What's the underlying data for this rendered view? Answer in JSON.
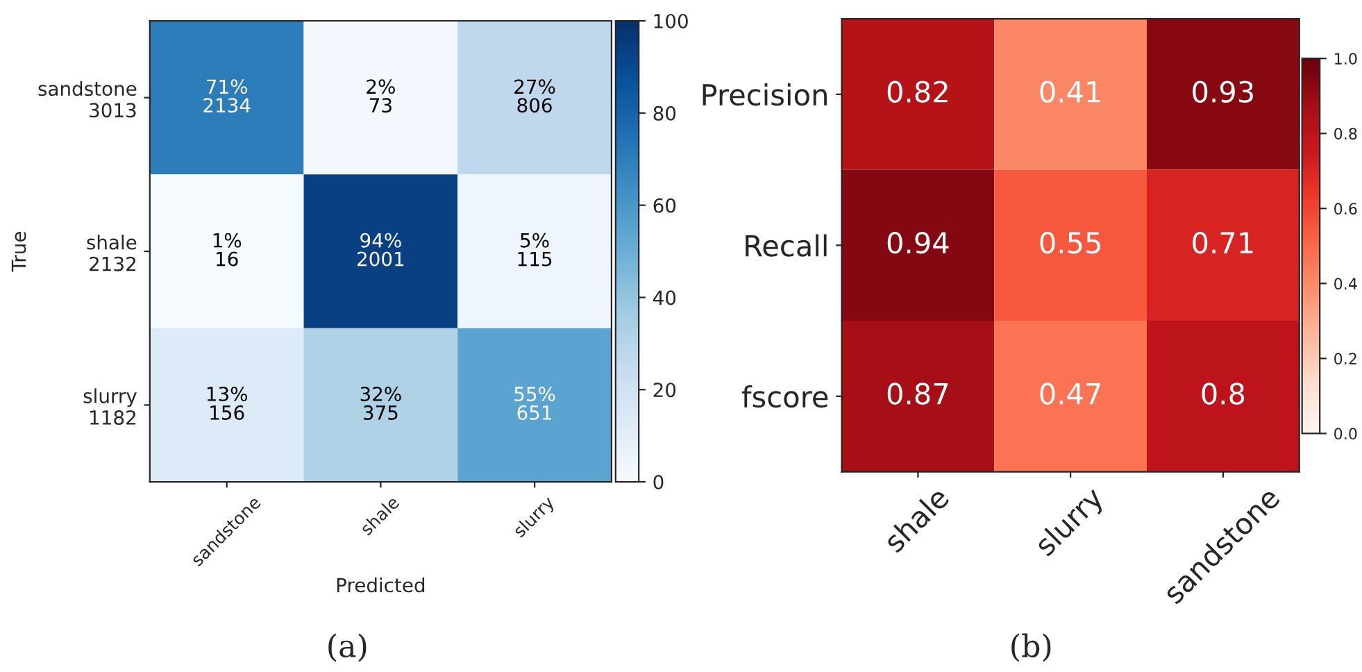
{
  "chart_data": [
    {
      "type": "heatmap",
      "xlabel": "Predicted",
      "ylabel": "True",
      "annotations": [
        "(a)"
      ],
      "categories": [
        "sandstone",
        "shale",
        "slurry"
      ],
      "y_categories": [
        "sandstone\n3013",
        "shale\n2132",
        "slurry\n1182"
      ],
      "cells": [
        [
          71,
          2,
          27
        ],
        [
          1,
          94,
          5
        ],
        [
          13,
          32,
          55
        ]
      ],
      "cell_labels": [
        [
          "71%\n2134",
          "2%\n73",
          "27%\n806"
        ],
        [
          "1%\n16",
          "94%\n2001",
          "5%\n115"
        ],
        [
          "13%\n156",
          "32%\n375",
          "55%\n651"
        ]
      ],
      "clim": [
        0,
        100
      ],
      "cticks": [
        0,
        20,
        40,
        60,
        80,
        100
      ]
    },
    {
      "type": "heatmap",
      "annotations": [
        "(b)"
      ],
      "categories": [
        "shale",
        "slurry",
        "sandstone"
      ],
      "y_categories": [
        "Precision",
        "Recall",
        "fscore"
      ],
      "cells": [
        [
          0.82,
          0.41,
          0.93
        ],
        [
          0.94,
          0.55,
          0.71
        ],
        [
          0.87,
          0.47,
          0.8
        ]
      ],
      "data_labels": true,
      "clim": [
        0,
        1
      ],
      "cticks": [
        {
          "value": 0,
          "label": "0.0"
        },
        {
          "value": 0.2,
          "label": "0.2"
        },
        {
          "value": 0.4,
          "label": "0.4"
        },
        {
          "value": 0.6,
          "label": "0.6"
        },
        {
          "value": 0.8,
          "label": "0.8"
        },
        {
          "value": 1,
          "label": "1.0"
        }
      ]
    }
  ]
}
